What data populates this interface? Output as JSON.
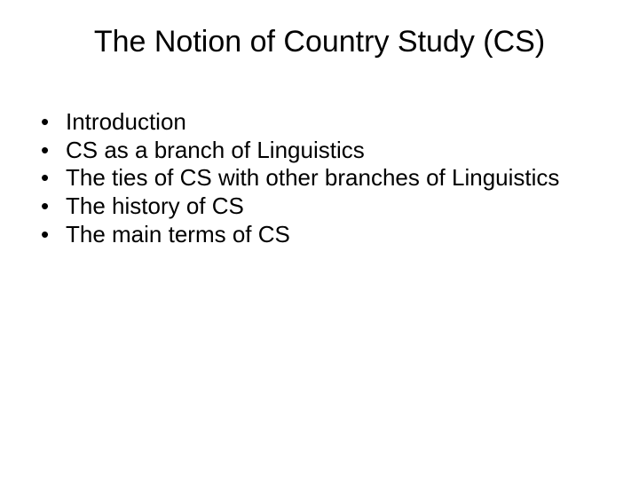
{
  "slide": {
    "title": "The Notion of Country Study (CS)",
    "bullets": [
      "Introduction",
      "CS as a branch of Linguistics",
      "The ties of CS with other branches of Linguistics",
      "The history of CS",
      "The main terms of CS"
    ]
  },
  "style": {
    "background_color": "#ffffff",
    "text_color": "#000000",
    "title_fontsize": 34,
    "bullet_fontsize": 26,
    "font_family": "Arial"
  }
}
